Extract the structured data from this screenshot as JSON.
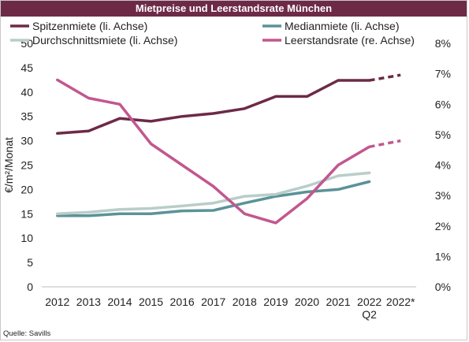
{
  "title": "Mietpreise und Leerstandsrate München",
  "source": "Quelle: Savills",
  "colors": {
    "title_bg": "#6d2a47",
    "spitzenmiete": "#6d2a47",
    "medianmiete": "#5b9298",
    "durchschnittsmiete": "#b9cdc9",
    "leerstandsrate": "#c2578f"
  },
  "chart_data": {
    "type": "line",
    "title": "Mietpreise und Leerstandsrate München",
    "categories": [
      "2012",
      "2013",
      "2014",
      "2015",
      "2016",
      "2017",
      "2018",
      "2019",
      "2020",
      "2021",
      "2022\nQ2",
      "2022*"
    ],
    "ylabel": "€/m²/Monat",
    "ylim": [
      0,
      50
    ],
    "y_ticks": [
      "0",
      "5",
      "10",
      "15",
      "20",
      "25",
      "30",
      "35",
      "40",
      "45",
      "50"
    ],
    "y2lim": [
      0,
      8
    ],
    "y2_ticks": [
      "0%",
      "1%",
      "2%",
      "3%",
      "4%",
      "5%",
      "6%",
      "7%",
      "8%"
    ],
    "grid": false,
    "legend": "top",
    "series": [
      {
        "name": "Spitzenmiete (li. Achse)",
        "axis": "left",
        "color": "#6d2a47",
        "values": [
          31.5,
          32.0,
          34.6,
          34.0,
          35.0,
          35.6,
          36.6,
          39.1,
          39.1,
          42.4,
          42.4,
          43.5
        ],
        "dashed_from_index": 10
      },
      {
        "name": "Medianmiete (li. Achse)",
        "axis": "left",
        "color": "#5b9298",
        "values": [
          14.6,
          14.6,
          15.0,
          15.0,
          15.6,
          15.7,
          17.2,
          18.6,
          19.5,
          20.0,
          21.6,
          null
        ]
      },
      {
        "name": "Durchschnittsmiete (li. Achse)",
        "axis": "left",
        "color": "#b9cdc9",
        "values": [
          15.0,
          15.3,
          15.9,
          16.1,
          16.6,
          17.2,
          18.6,
          19.0,
          20.7,
          22.8,
          23.4,
          null
        ]
      },
      {
        "name": "Leerstandsrate (re. Achse)",
        "axis": "right",
        "color": "#c2578f",
        "values": [
          6.8,
          6.2,
          6.0,
          4.7,
          4.0,
          3.3,
          2.4,
          2.1,
          2.9,
          4.0,
          4.6,
          4.8
        ],
        "dashed_from_index": 10
      }
    ]
  }
}
